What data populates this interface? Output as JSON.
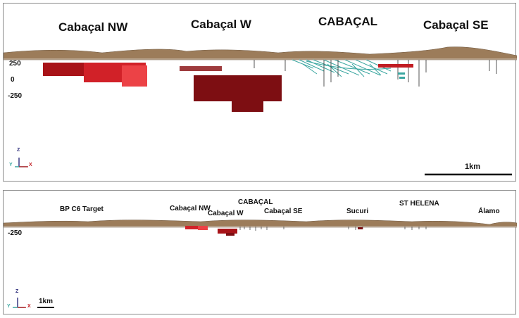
{
  "top_view": {
    "labels": {
      "cabacal_nw": "Cabaçal NW",
      "cabacal_w": "Cabaçal W",
      "cabacal": "CABAÇAL",
      "cabacal_se": "Cabaçal SE"
    },
    "elevation_ticks": [
      "250",
      "0",
      "-250"
    ],
    "scale_bar": "1km",
    "axes": {
      "z": "Z",
      "y": "Y",
      "x": "X"
    }
  },
  "bottom_view": {
    "labels": {
      "bp_c6_target": "BP C6 Target",
      "cabacal_nw": "Cabaçal NW",
      "cabacal": "CABAÇAL",
      "cabacal_w": "Cabaçal W",
      "cabacal_se": "Cabaçal SE",
      "sucuri": "Sucuri",
      "st_helena": "ST HELENA",
      "alamo": "Álamo"
    },
    "elevation_ticks": [
      "-250"
    ],
    "scale_bar": "1km",
    "axes": {
      "z": "Z",
      "y": "Y",
      "x": "X"
    }
  },
  "colors": {
    "terrain": "#9c7c5a",
    "body_dark_red": "#7d0e12",
    "body_red": "#c11c22",
    "body_bright_red": "#e8383c",
    "drillholes": "#3aa6a0"
  }
}
